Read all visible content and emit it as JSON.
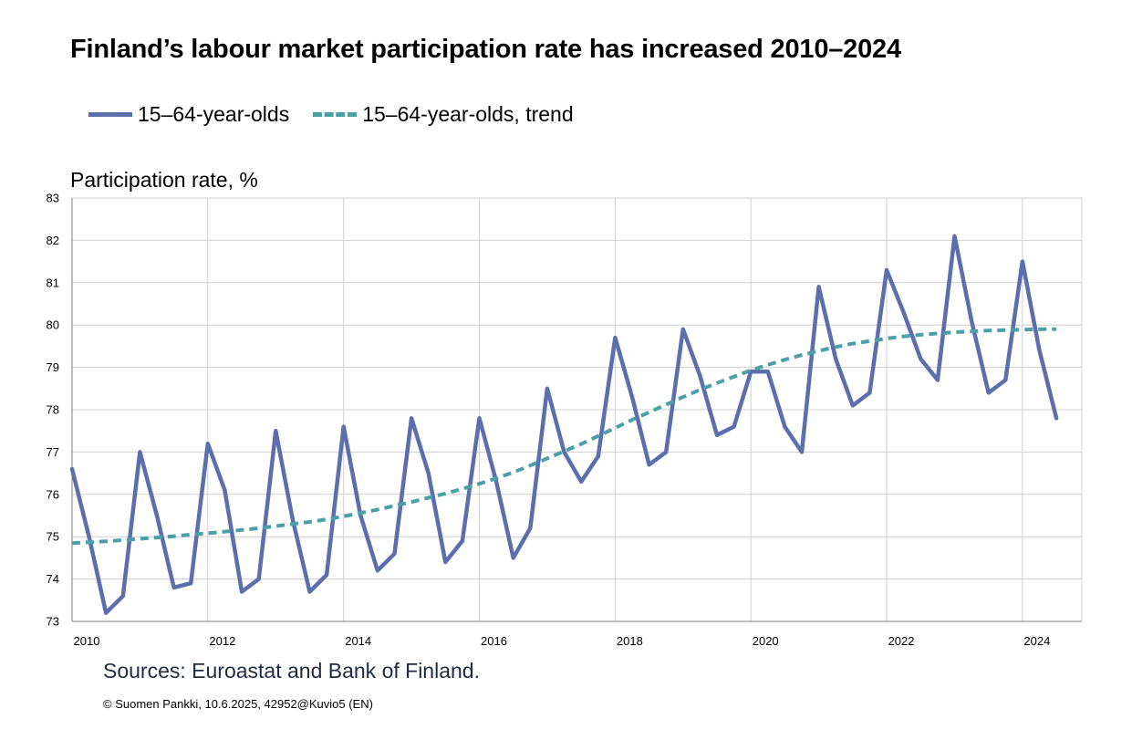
{
  "title": "Finland’s labour market participation rate has increased 2010–2024",
  "source": "Sources: Euroastat and Bank of Finland.",
  "copyright": "© Suomen Pankki, 10.6.2025,  42952@Kuvio5  (EN)",
  "chart_data": {
    "type": "line",
    "title": "Finland’s labour market participation rate has increased 2010–2024",
    "ylabel": "Participation rate, %",
    "xlabel": "",
    "ylim": [
      73,
      83
    ],
    "xlim": [
      2010,
      2024.875
    ],
    "yticks": [
      73,
      74,
      75,
      76,
      77,
      78,
      79,
      80,
      81,
      82,
      83
    ],
    "xticks": [
      "2010",
      "2012",
      "2014",
      "2016",
      "2018",
      "2020",
      "2022",
      "2024"
    ],
    "grid": true,
    "legend_position": "top",
    "x": [
      "2010Q1",
      "2010Q2",
      "2010Q3",
      "2010Q4",
      "2011Q1",
      "2011Q2",
      "2011Q3",
      "2011Q4",
      "2012Q1",
      "2012Q2",
      "2012Q3",
      "2012Q4",
      "2013Q1",
      "2013Q2",
      "2013Q3",
      "2013Q4",
      "2014Q1",
      "2014Q2",
      "2014Q3",
      "2014Q4",
      "2015Q1",
      "2015Q2",
      "2015Q3",
      "2015Q4",
      "2016Q1",
      "2016Q2",
      "2016Q3",
      "2016Q4",
      "2017Q1",
      "2017Q2",
      "2017Q3",
      "2017Q4",
      "2018Q1",
      "2018Q2",
      "2018Q3",
      "2018Q4",
      "2019Q1",
      "2019Q2",
      "2019Q3",
      "2019Q4",
      "2020Q1",
      "2020Q2",
      "2020Q3",
      "2020Q4",
      "2021Q1",
      "2021Q2",
      "2021Q3",
      "2021Q4",
      "2022Q1",
      "2022Q2",
      "2022Q3",
      "2022Q4",
      "2023Q1",
      "2023Q2",
      "2023Q3",
      "2023Q4",
      "2024Q1",
      "2024Q2",
      "2024Q3",
      "2024Q4"
    ],
    "series": [
      {
        "name": "15–64-year-olds",
        "color": "#5b6fad",
        "style": "solid",
        "values": [
          76.6,
          75.0,
          73.2,
          73.6,
          77.0,
          75.5,
          73.8,
          73.9,
          77.2,
          76.1,
          73.7,
          74.0,
          77.5,
          75.4,
          73.7,
          74.1,
          77.6,
          75.5,
          74.2,
          74.6,
          77.8,
          76.5,
          74.4,
          74.9,
          77.8,
          76.3,
          74.5,
          75.2,
          78.5,
          77.0,
          76.3,
          76.9,
          79.7,
          78.3,
          76.7,
          77.0,
          79.9,
          78.8,
          77.4,
          77.6,
          78.9,
          78.9,
          77.6,
          77.0,
          80.9,
          79.2,
          78.1,
          78.4,
          81.3,
          80.3,
          79.2,
          78.7,
          82.1,
          80.1,
          78.4,
          78.7,
          81.5,
          79.4,
          77.8,
          null
        ]
      },
      {
        "name": "15–64-year-olds, trend",
        "color": "#4aa0a8",
        "style": "dashed",
        "values": [
          74.85,
          74.87,
          74.89,
          74.92,
          74.95,
          74.98,
          75.01,
          75.05,
          75.08,
          75.12,
          75.16,
          75.2,
          75.25,
          75.3,
          75.35,
          75.41,
          75.48,
          75.56,
          75.64,
          75.73,
          75.82,
          75.92,
          76.02,
          76.13,
          76.25,
          76.38,
          76.52,
          76.68,
          76.85,
          77.02,
          77.19,
          77.38,
          77.57,
          77.76,
          77.94,
          78.12,
          78.3,
          78.47,
          78.63,
          78.78,
          78.93,
          79.06,
          79.18,
          79.29,
          79.39,
          79.48,
          79.56,
          79.62,
          79.68,
          79.73,
          79.77,
          79.8,
          79.83,
          79.85,
          79.87,
          79.88,
          79.89,
          79.9,
          79.9,
          null
        ]
      }
    ]
  }
}
